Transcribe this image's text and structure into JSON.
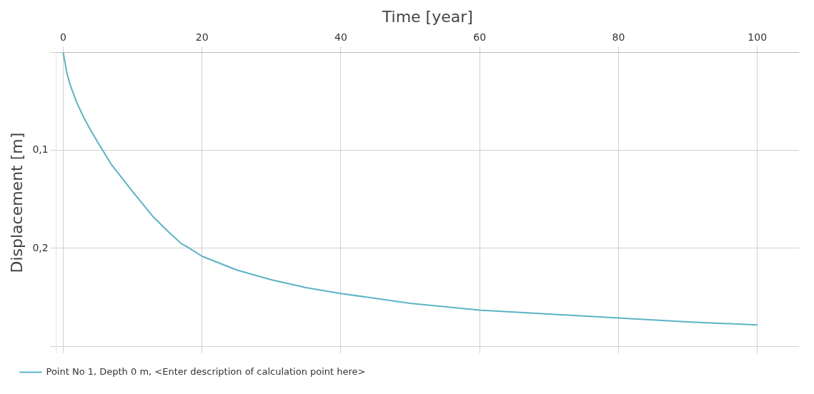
{
  "chart_data": {
    "type": "line",
    "xlabel": "Time [year]",
    "ylabel": "Displacement [m]",
    "xlim": [
      -1,
      106
    ],
    "xticks": [
      0,
      20,
      40,
      60,
      80,
      100
    ],
    "ylim": [
      0.307,
      0
    ],
    "yticks": [
      {
        "value": 0,
        "label": null
      },
      {
        "value": 0.1,
        "label": "0,1"
      },
      {
        "value": 0.2,
        "label": "0,2"
      },
      {
        "value": 0.3,
        "label": null
      }
    ],
    "grid": true,
    "legend": "bottom left",
    "marker": "none",
    "line_style": "solid",
    "series": [
      {
        "name": "Point No 1, Depth 0 m, <Enter description of calculation point here>",
        "color": "#5bb3c4",
        "x": [
          0,
          0.5,
          1,
          2,
          3,
          4,
          5,
          7,
          10,
          13,
          15,
          17,
          18,
          20,
          25,
          30,
          35,
          40,
          50,
          60,
          70,
          80,
          90,
          100
        ],
        "values": [
          0,
          0.02,
          0.033,
          0.052,
          0.067,
          0.08,
          0.092,
          0.115,
          0.142,
          0.168,
          0.182,
          0.195,
          0.199,
          0.208,
          0.222,
          0.232,
          0.24,
          0.246,
          0.256,
          0.263,
          0.267,
          0.271,
          0.275,
          0.278
        ]
      }
    ]
  }
}
